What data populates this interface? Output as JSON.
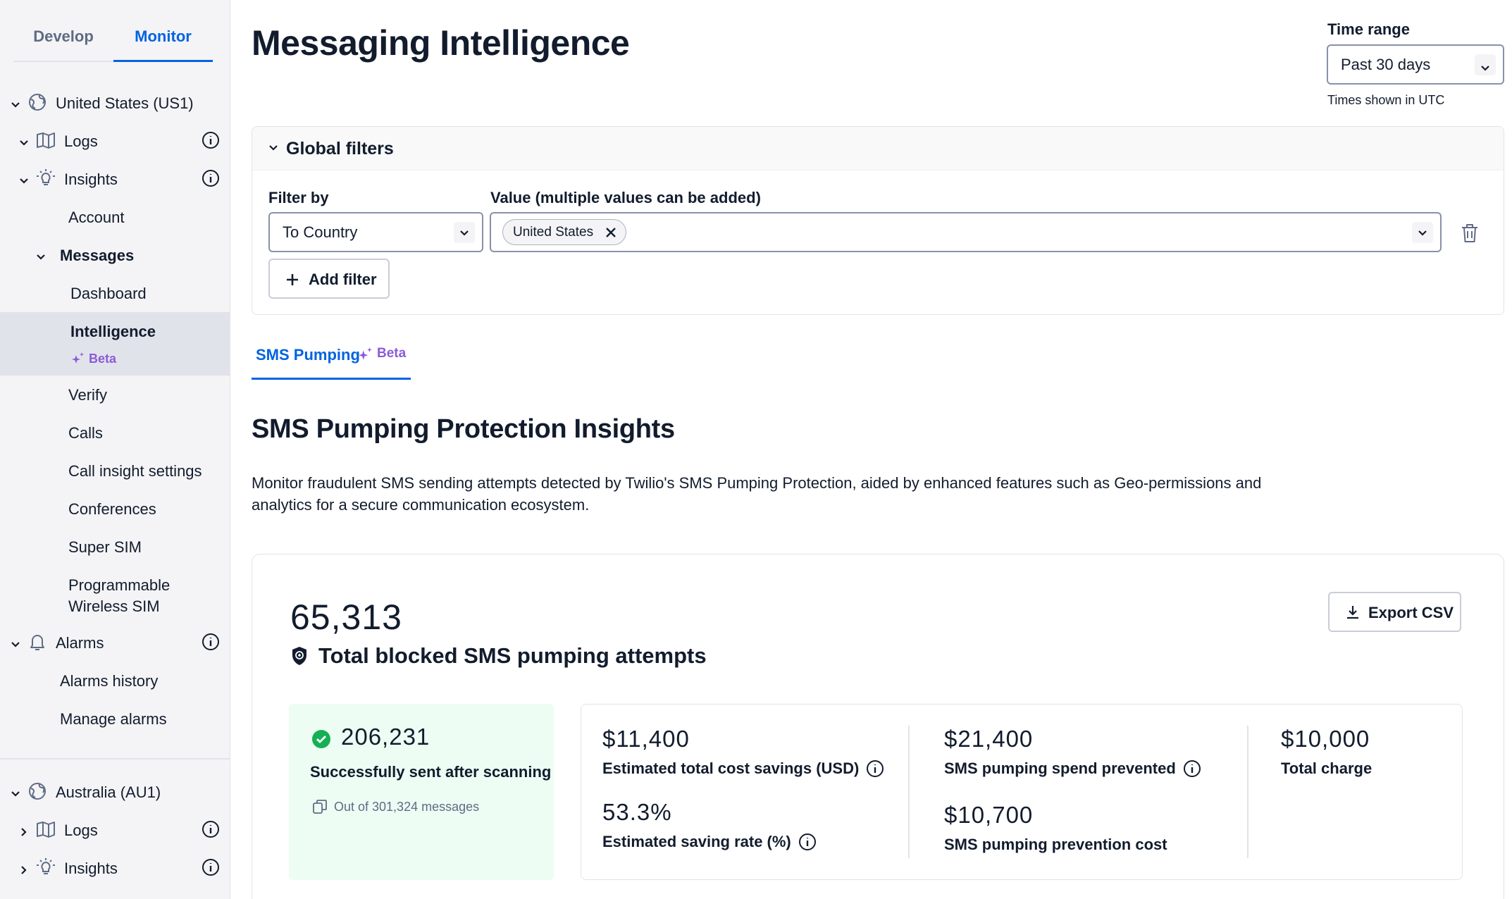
{
  "sidebar": {
    "tabs": {
      "develop": "Develop",
      "monitor": "Monitor"
    },
    "region_us": "United States (US1)",
    "logs": "Logs",
    "insights": "Insights",
    "account": "Account",
    "messages": "Messages",
    "dashboard": "Dashboard",
    "intelligence": "Intelligence",
    "beta": "Beta",
    "verify": "Verify",
    "calls": "Calls",
    "call_insight_settings": "Call insight settings",
    "conferences": "Conferences",
    "super_sim": "Super SIM",
    "programmable_1": "Programmable",
    "programmable_2": "Wireless SIM",
    "alarms": "Alarms",
    "alarms_history": "Alarms history",
    "manage_alarms": "Manage alarms",
    "region_au": "Australia (AU1)",
    "au_logs": "Logs",
    "au_insights": "Insights"
  },
  "header": {
    "title": "Messaging Intelligence",
    "time_range_label": "Time range",
    "time_range_value": "Past 30 days",
    "time_help": "Times shown in UTC"
  },
  "filters": {
    "title": "Global filters",
    "filter_by_label": "Filter by",
    "filter_by_value": "To Country",
    "value_label": "Value (multiple values can be added)",
    "value_pill": "United States",
    "add_filter": "Add filter"
  },
  "tabs": {
    "sms_pumping": "SMS Pumping",
    "beta": "Beta"
  },
  "section": {
    "title": "SMS Pumping Protection Insights",
    "description": "Monitor fraudulent SMS sending attempts detected by Twilio's SMS Pumping Protection, aided by enhanced features such as Geo-permissions and analytics for a secure communication ecosystem."
  },
  "stats": {
    "total_blocked": "65,313",
    "total_blocked_label": "Total blocked SMS pumping attempts",
    "export": "Export CSV",
    "sent_after_scanning": "206,231",
    "sent_after_scanning_label": "Successfully sent after scanning",
    "out_of": "Out of 301,324 messages",
    "est_savings": "$11,400",
    "est_savings_label": "Estimated total cost savings (USD)",
    "saving_rate": "53.3%",
    "saving_rate_label": "Estimated saving rate (%)",
    "spend_prevented": "$21,400",
    "spend_prevented_label": "SMS pumping spend prevented",
    "prevention_cost": "$10,700",
    "prevention_cost_label": "SMS pumping prevention cost",
    "total_charge": "$10,000",
    "total_charge_label": "Total charge"
  },
  "colors": {
    "accent": "#0263e0",
    "beta": "#8c5bd8",
    "success": "#14b053",
    "success_bg": "#edfdf3"
  }
}
